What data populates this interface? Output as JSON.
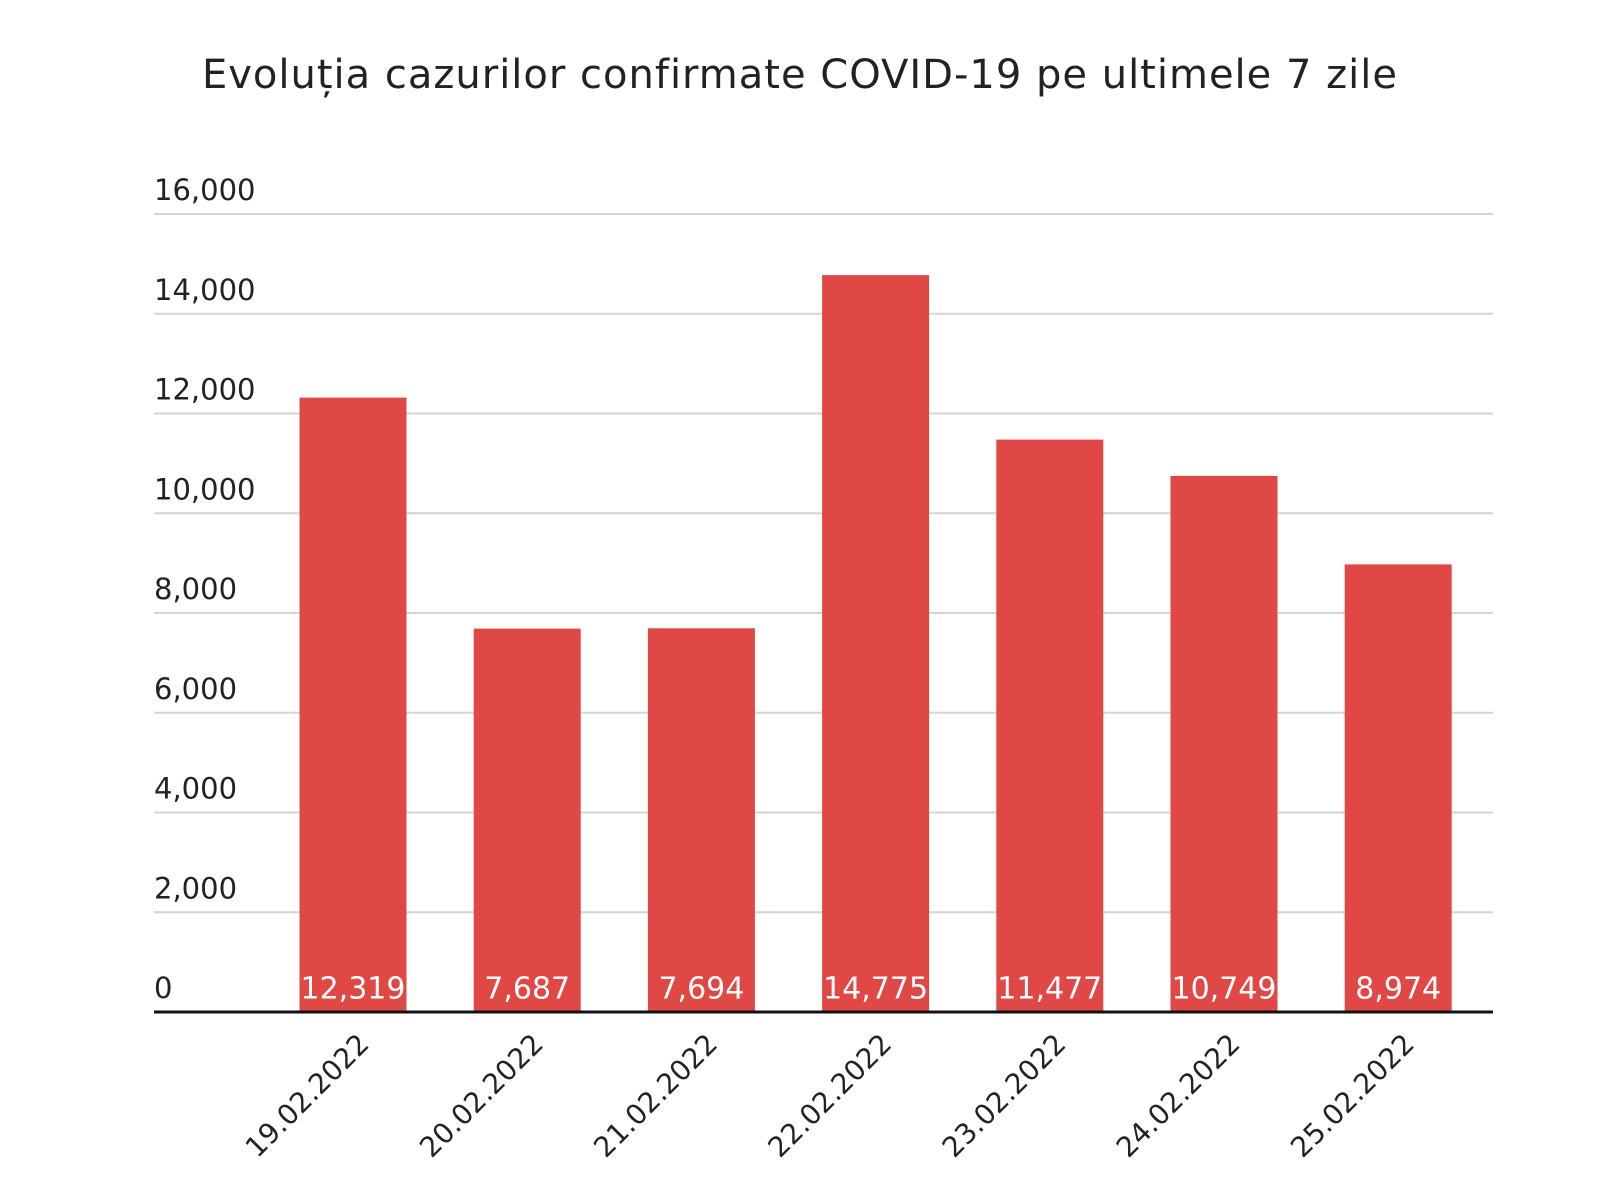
{
  "chart_data": {
    "type": "bar",
    "title": "Evoluția cazurilor confirmate COVID-19 pe ultimele 7 zile",
    "categories": [
      "19.02.2022",
      "20.02.2022",
      "21.02.2022",
      "22.02.2022",
      "23.02.2022",
      "24.02.2022",
      "25.02.2022"
    ],
    "values": [
      12319,
      7687,
      7694,
      14775,
      11477,
      10749,
      8974
    ],
    "value_labels": [
      "12,319",
      "7,687",
      "7,694",
      "14,775",
      "11,477",
      "10,749",
      "8,974"
    ],
    "color": "#e04846",
    "ylim": [
      0,
      16000
    ],
    "yticks": [
      0,
      {
        "value": 2000,
        "label": "2,000"
      },
      {
        "value": 4000,
        "label": "4,000"
      },
      {
        "value": 6000,
        "label": "6,000"
      },
      {
        "value": 8000,
        "label": "8,000"
      },
      {
        "value": 10000,
        "label": "10,000"
      },
      {
        "value": 12000,
        "label": "12,000"
      },
      {
        "value": 14000,
        "label": "14,000"
      },
      {
        "value": 16000,
        "label": "16,000"
      }
    ],
    "grid": true
  }
}
